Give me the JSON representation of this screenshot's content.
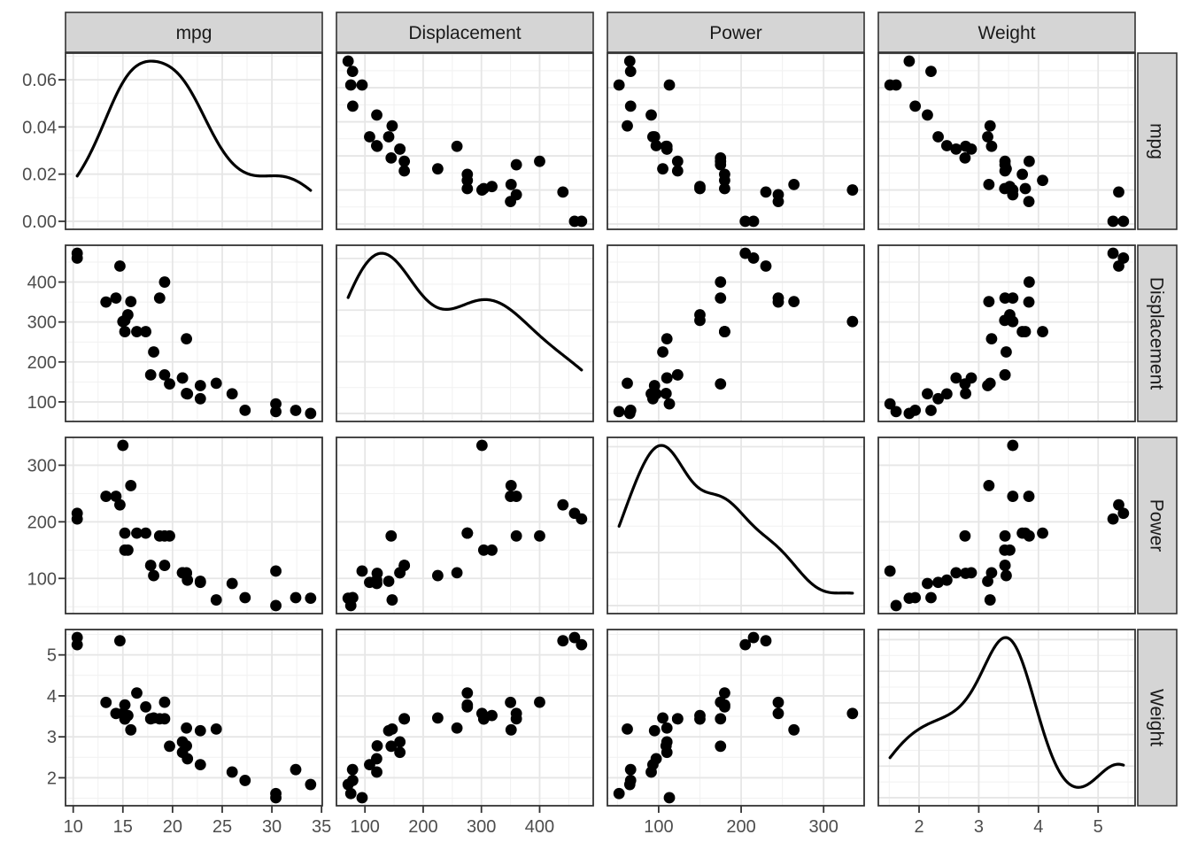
{
  "chart_data": {
    "type": "scatter",
    "subtype": "scatterplot-matrix",
    "title": "",
    "xlabel": "",
    "ylabel": "",
    "legend": "none",
    "grid": "on",
    "diagonal": "density",
    "variables": [
      "mpg",
      "Displacement",
      "Power",
      "Weight"
    ],
    "facet_strips": {
      "top": [
        "mpg",
        "Displacement",
        "Power",
        "Weight"
      ],
      "right": [
        "mpg",
        "Displacement",
        "Power",
        "Weight"
      ]
    },
    "expansion": 0.05,
    "density_settings": {
      "kernel": "gaussian",
      "bandwidth_rule": "nrd0"
    },
    "style": {
      "point_color": "#000000",
      "curve_color": "#000000",
      "panel_fill": "#ffffff",
      "panel_border": "#333333",
      "grid_major_color": "#e6e6e6",
      "grid_minor_color": "#f1f1f1",
      "strip_fill": "#d5d5d5",
      "strip_border": "#333333",
      "tick_color": "#333333",
      "axis_text_color": "#4d4d4d",
      "strip_text_color": "#1a1a1a"
    },
    "axes": {
      "mpg": {
        "breaks": [
          10,
          15,
          20,
          25,
          30,
          35
        ],
        "labels": [
          "10",
          "15",
          "20",
          "25",
          "30",
          "35"
        ],
        "minor": [
          12.5,
          17.5,
          22.5,
          27.5,
          32.5
        ]
      },
      "Displacement": {
        "breaks": [
          100,
          200,
          300,
          400
        ],
        "labels": [
          "100",
          "200",
          "300",
          "400"
        ],
        "minor": [
          150,
          250,
          350,
          450
        ]
      },
      "Power": {
        "breaks": [
          100,
          200,
          300
        ],
        "labels": [
          "100",
          "200",
          "300"
        ],
        "minor": [
          50,
          150,
          250
        ]
      },
      "Weight": {
        "breaks": [
          2,
          3,
          4,
          5
        ],
        "labels": [
          "2",
          "3",
          "4",
          "5"
        ],
        "minor": [
          1.5,
          2.5,
          3.5,
          4.5,
          5.5
        ]
      },
      "density": {
        "breaks": [
          0,
          0.02,
          0.04,
          0.06
        ],
        "labels": [
          "0.00",
          "0.02",
          "0.04",
          "0.06"
        ],
        "minor": [
          0.01,
          0.03,
          0.05,
          0.07
        ]
      }
    },
    "observations": {
      "columns": [
        "mpg",
        "Displacement",
        "Power",
        "Weight"
      ],
      "rows": [
        [
          21.0,
          160.0,
          110,
          2.62
        ],
        [
          21.0,
          160.0,
          110,
          2.875
        ],
        [
          22.8,
          108.0,
          93,
          2.32
        ],
        [
          21.4,
          258.0,
          110,
          3.215
        ],
        [
          18.7,
          360.0,
          175,
          3.44
        ],
        [
          18.1,
          225.0,
          105,
          3.46
        ],
        [
          14.3,
          360.0,
          245,
          3.57
        ],
        [
          24.4,
          146.7,
          62,
          3.19
        ],
        [
          22.8,
          140.8,
          95,
          3.15
        ],
        [
          19.2,
          167.6,
          123,
          3.44
        ],
        [
          17.8,
          167.6,
          123,
          3.44
        ],
        [
          16.4,
          275.8,
          180,
          4.07
        ],
        [
          17.3,
          275.8,
          180,
          3.73
        ],
        [
          15.2,
          275.8,
          180,
          3.78
        ],
        [
          10.4,
          472.0,
          205,
          5.25
        ],
        [
          10.4,
          460.0,
          215,
          5.424
        ],
        [
          14.7,
          440.0,
          230,
          5.345
        ],
        [
          32.4,
          78.7,
          66,
          2.2
        ],
        [
          30.4,
          75.7,
          52,
          1.615
        ],
        [
          33.9,
          71.1,
          65,
          1.835
        ],
        [
          21.5,
          120.1,
          97,
          2.465
        ],
        [
          15.5,
          318.0,
          150,
          3.52
        ],
        [
          15.2,
          304.0,
          150,
          3.435
        ],
        [
          13.3,
          350.0,
          245,
          3.84
        ],
        [
          19.2,
          400.0,
          175,
          3.845
        ],
        [
          27.3,
          79.0,
          66,
          1.935
        ],
        [
          26.0,
          120.3,
          91,
          2.14
        ],
        [
          30.4,
          95.1,
          113,
          1.513
        ],
        [
          15.8,
          351.0,
          264,
          3.17
        ],
        [
          19.7,
          145.0,
          175,
          2.77
        ],
        [
          15.0,
          301.0,
          335,
          3.57
        ],
        [
          21.4,
          121.0,
          109,
          2.78
        ]
      ]
    }
  }
}
